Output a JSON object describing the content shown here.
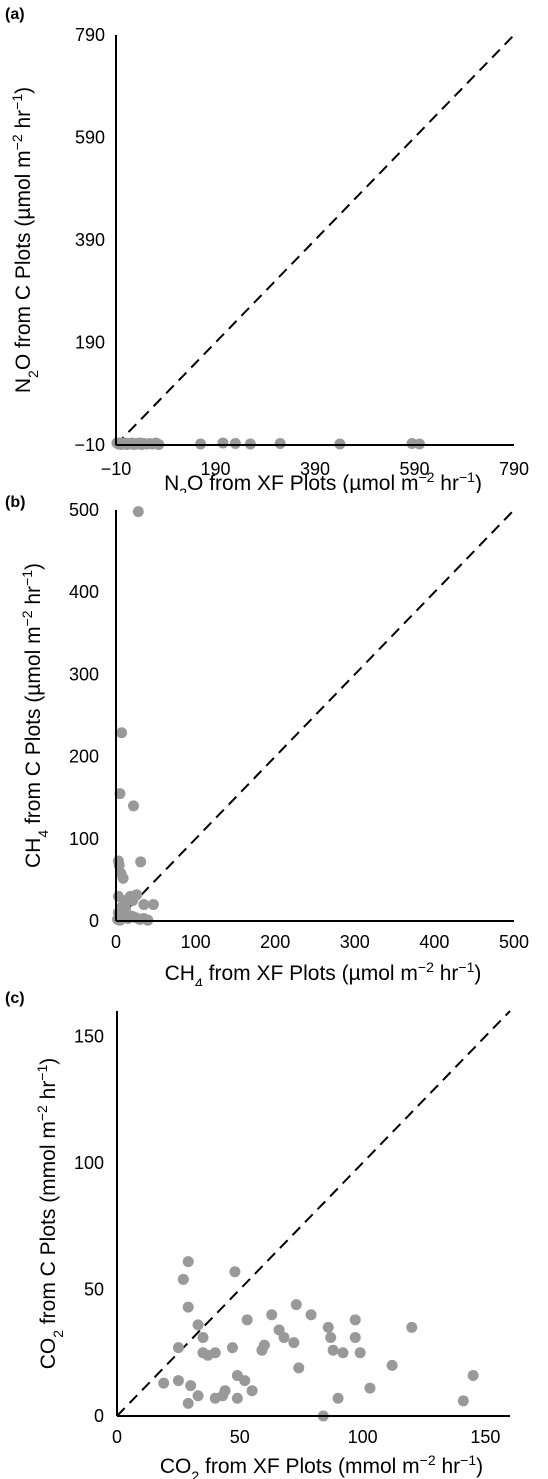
{
  "chart_data": [
    {
      "type": "scatter",
      "panel_label": "(a)",
      "xlabel_parts": [
        [
          "N",
          ""
        ],
        [
          "2",
          "sub"
        ],
        [
          "O from XF Plots (µmol m",
          ""
        ],
        [
          "−2",
          "sup"
        ],
        [
          " hr",
          ""
        ],
        [
          "−1",
          "sup"
        ],
        [
          ")",
          ""
        ]
      ],
      "ylabel_parts": [
        [
          "N",
          ""
        ],
        [
          "2",
          "sub"
        ],
        [
          "O from C Plots (µmol m",
          ""
        ],
        [
          "−2",
          "sup"
        ],
        [
          " hr",
          ""
        ],
        [
          "−1",
          "sup"
        ],
        [
          ")",
          ""
        ]
      ],
      "xlim": [
        -10,
        790
      ],
      "ylim": [
        -10,
        790
      ],
      "xticks": [
        "−10",
        "190",
        "390",
        "590",
        "790"
      ],
      "yticks": [
        "−10",
        "190",
        "390",
        "590",
        "790"
      ],
      "xtick_values": [
        -10,
        190,
        390,
        590,
        790
      ],
      "ytick_values": [
        -10,
        190,
        390,
        590,
        790
      ],
      "reference_line": "1:1 dashed",
      "point_color": "#999999",
      "points": [
        [
          -8,
          -6
        ],
        [
          -5,
          -8
        ],
        [
          -3,
          -6
        ],
        [
          0,
          -9
        ],
        [
          2,
          -7
        ],
        [
          5,
          -8
        ],
        [
          8,
          -6
        ],
        [
          12,
          -9
        ],
        [
          15,
          -7
        ],
        [
          18,
          -8
        ],
        [
          22,
          -6
        ],
        [
          26,
          -9
        ],
        [
          30,
          -7
        ],
        [
          34,
          -8
        ],
        [
          38,
          -6
        ],
        [
          42,
          -9
        ],
        [
          46,
          -7
        ],
        [
          52,
          -8
        ],
        [
          58,
          -7
        ],
        [
          64,
          -8
        ],
        [
          70,
          -6
        ],
        [
          76,
          -9
        ],
        [
          160,
          -8
        ],
        [
          205,
          -6
        ],
        [
          230,
          -7
        ],
        [
          260,
          -8
        ],
        [
          320,
          -7
        ],
        [
          440,
          -8
        ],
        [
          585,
          -7
        ],
        [
          600,
          -8
        ]
      ]
    },
    {
      "type": "scatter",
      "panel_label": "(b)",
      "xlabel_parts": [
        [
          "CH",
          ""
        ],
        [
          "4",
          "sub"
        ],
        [
          " from XF Plots (µmol m",
          ""
        ],
        [
          "−2",
          "sup"
        ],
        [
          " hr",
          ""
        ],
        [
          "−1",
          "sup"
        ],
        [
          ")",
          ""
        ]
      ],
      "ylabel_parts": [
        [
          "CH",
          ""
        ],
        [
          "4",
          "sub"
        ],
        [
          " from C Plots (µmol m",
          ""
        ],
        [
          "−2",
          "sup"
        ],
        [
          " hr",
          ""
        ],
        [
          "−1",
          "sup"
        ],
        [
          ")",
          ""
        ]
      ],
      "xlim": [
        0,
        500
      ],
      "ylim": [
        0,
        500
      ],
      "xticks": [
        "0",
        "100",
        "200",
        "300",
        "400",
        "500"
      ],
      "yticks": [
        "0",
        "100",
        "200",
        "300",
        "400",
        "500"
      ],
      "xtick_values": [
        0,
        100,
        200,
        300,
        400,
        500
      ],
      "ytick_values": [
        0,
        100,
        200,
        300,
        400,
        500
      ],
      "reference_line": "1:1 dashed",
      "point_color": "#999999",
      "points": [
        [
          28,
          498
        ],
        [
          7,
          229
        ],
        [
          5,
          155
        ],
        [
          22,
          140
        ],
        [
          3,
          73
        ],
        [
          4,
          68
        ],
        [
          31,
          72
        ],
        [
          6,
          58
        ],
        [
          9,
          52
        ],
        [
          3,
          30
        ],
        [
          18,
          30
        ],
        [
          26,
          32
        ],
        [
          13,
          25
        ],
        [
          21,
          25
        ],
        [
          35,
          20
        ],
        [
          47,
          20
        ],
        [
          3,
          10
        ],
        [
          7,
          8
        ],
        [
          11,
          5
        ],
        [
          15,
          3
        ],
        [
          20,
          6
        ],
        [
          25,
          4
        ],
        [
          30,
          2
        ],
        [
          35,
          3
        ],
        [
          40,
          1
        ],
        [
          2,
          2
        ],
        [
          5,
          1
        ],
        [
          9,
          12
        ],
        [
          12,
          15
        ],
        [
          8,
          18
        ]
      ]
    },
    {
      "type": "scatter",
      "panel_label": "(c)",
      "xlabel_parts": [
        [
          "CO",
          ""
        ],
        [
          "2",
          "sub"
        ],
        [
          " from XF Plots (mmol m",
          ""
        ],
        [
          "−2",
          "sup"
        ],
        [
          " hr",
          ""
        ],
        [
          "−1",
          "sup"
        ],
        [
          ")",
          ""
        ]
      ],
      "ylabel_parts": [
        [
          "CO",
          ""
        ],
        [
          "2",
          "sub"
        ],
        [
          " from C Plots (mmol m",
          ""
        ],
        [
          "−2",
          "sup"
        ],
        [
          " hr",
          ""
        ],
        [
          "−1",
          "sup"
        ],
        [
          ")",
          ""
        ]
      ],
      "xlim": [
        0,
        160
      ],
      "ylim": [
        0,
        160
      ],
      "xticks": [
        "0",
        "50",
        "100",
        "150"
      ],
      "yticks": [
        "0",
        "50",
        "100",
        "150"
      ],
      "xtick_values": [
        0,
        50,
        100,
        150
      ],
      "ytick_values": [
        0,
        50,
        100,
        150
      ],
      "reference_line": "1:1 dashed",
      "point_color": "#999999",
      "points": [
        [
          29,
          61
        ],
        [
          27,
          54
        ],
        [
          29,
          43
        ],
        [
          48,
          57
        ],
        [
          25,
          27
        ],
        [
          19,
          13
        ],
        [
          25,
          14
        ],
        [
          29,
          5
        ],
        [
          30,
          12
        ],
        [
          33,
          36
        ],
        [
          33,
          8
        ],
        [
          35,
          31
        ],
        [
          35,
          25
        ],
        [
          37,
          24
        ],
        [
          40,
          25
        ],
        [
          40,
          7
        ],
        [
          43,
          8
        ],
        [
          44,
          10
        ],
        [
          47,
          27
        ],
        [
          49,
          7
        ],
        [
          49,
          16
        ],
        [
          52,
          14
        ],
        [
          53,
          38
        ],
        [
          55,
          10
        ],
        [
          59,
          26
        ],
        [
          60,
          28
        ],
        [
          63,
          40
        ],
        [
          66,
          34
        ],
        [
          68,
          31
        ],
        [
          72,
          29
        ],
        [
          73,
          44
        ],
        [
          74,
          19
        ],
        [
          79,
          40
        ],
        [
          84,
          0
        ],
        [
          86,
          35
        ],
        [
          87,
          31
        ],
        [
          88,
          26
        ],
        [
          90,
          7
        ],
        [
          92,
          25
        ],
        [
          97,
          38
        ],
        [
          97,
          31
        ],
        [
          99,
          25
        ],
        [
          103,
          11
        ],
        [
          112,
          20
        ],
        [
          120,
          35
        ],
        [
          141,
          6
        ],
        [
          145,
          16
        ]
      ]
    }
  ]
}
